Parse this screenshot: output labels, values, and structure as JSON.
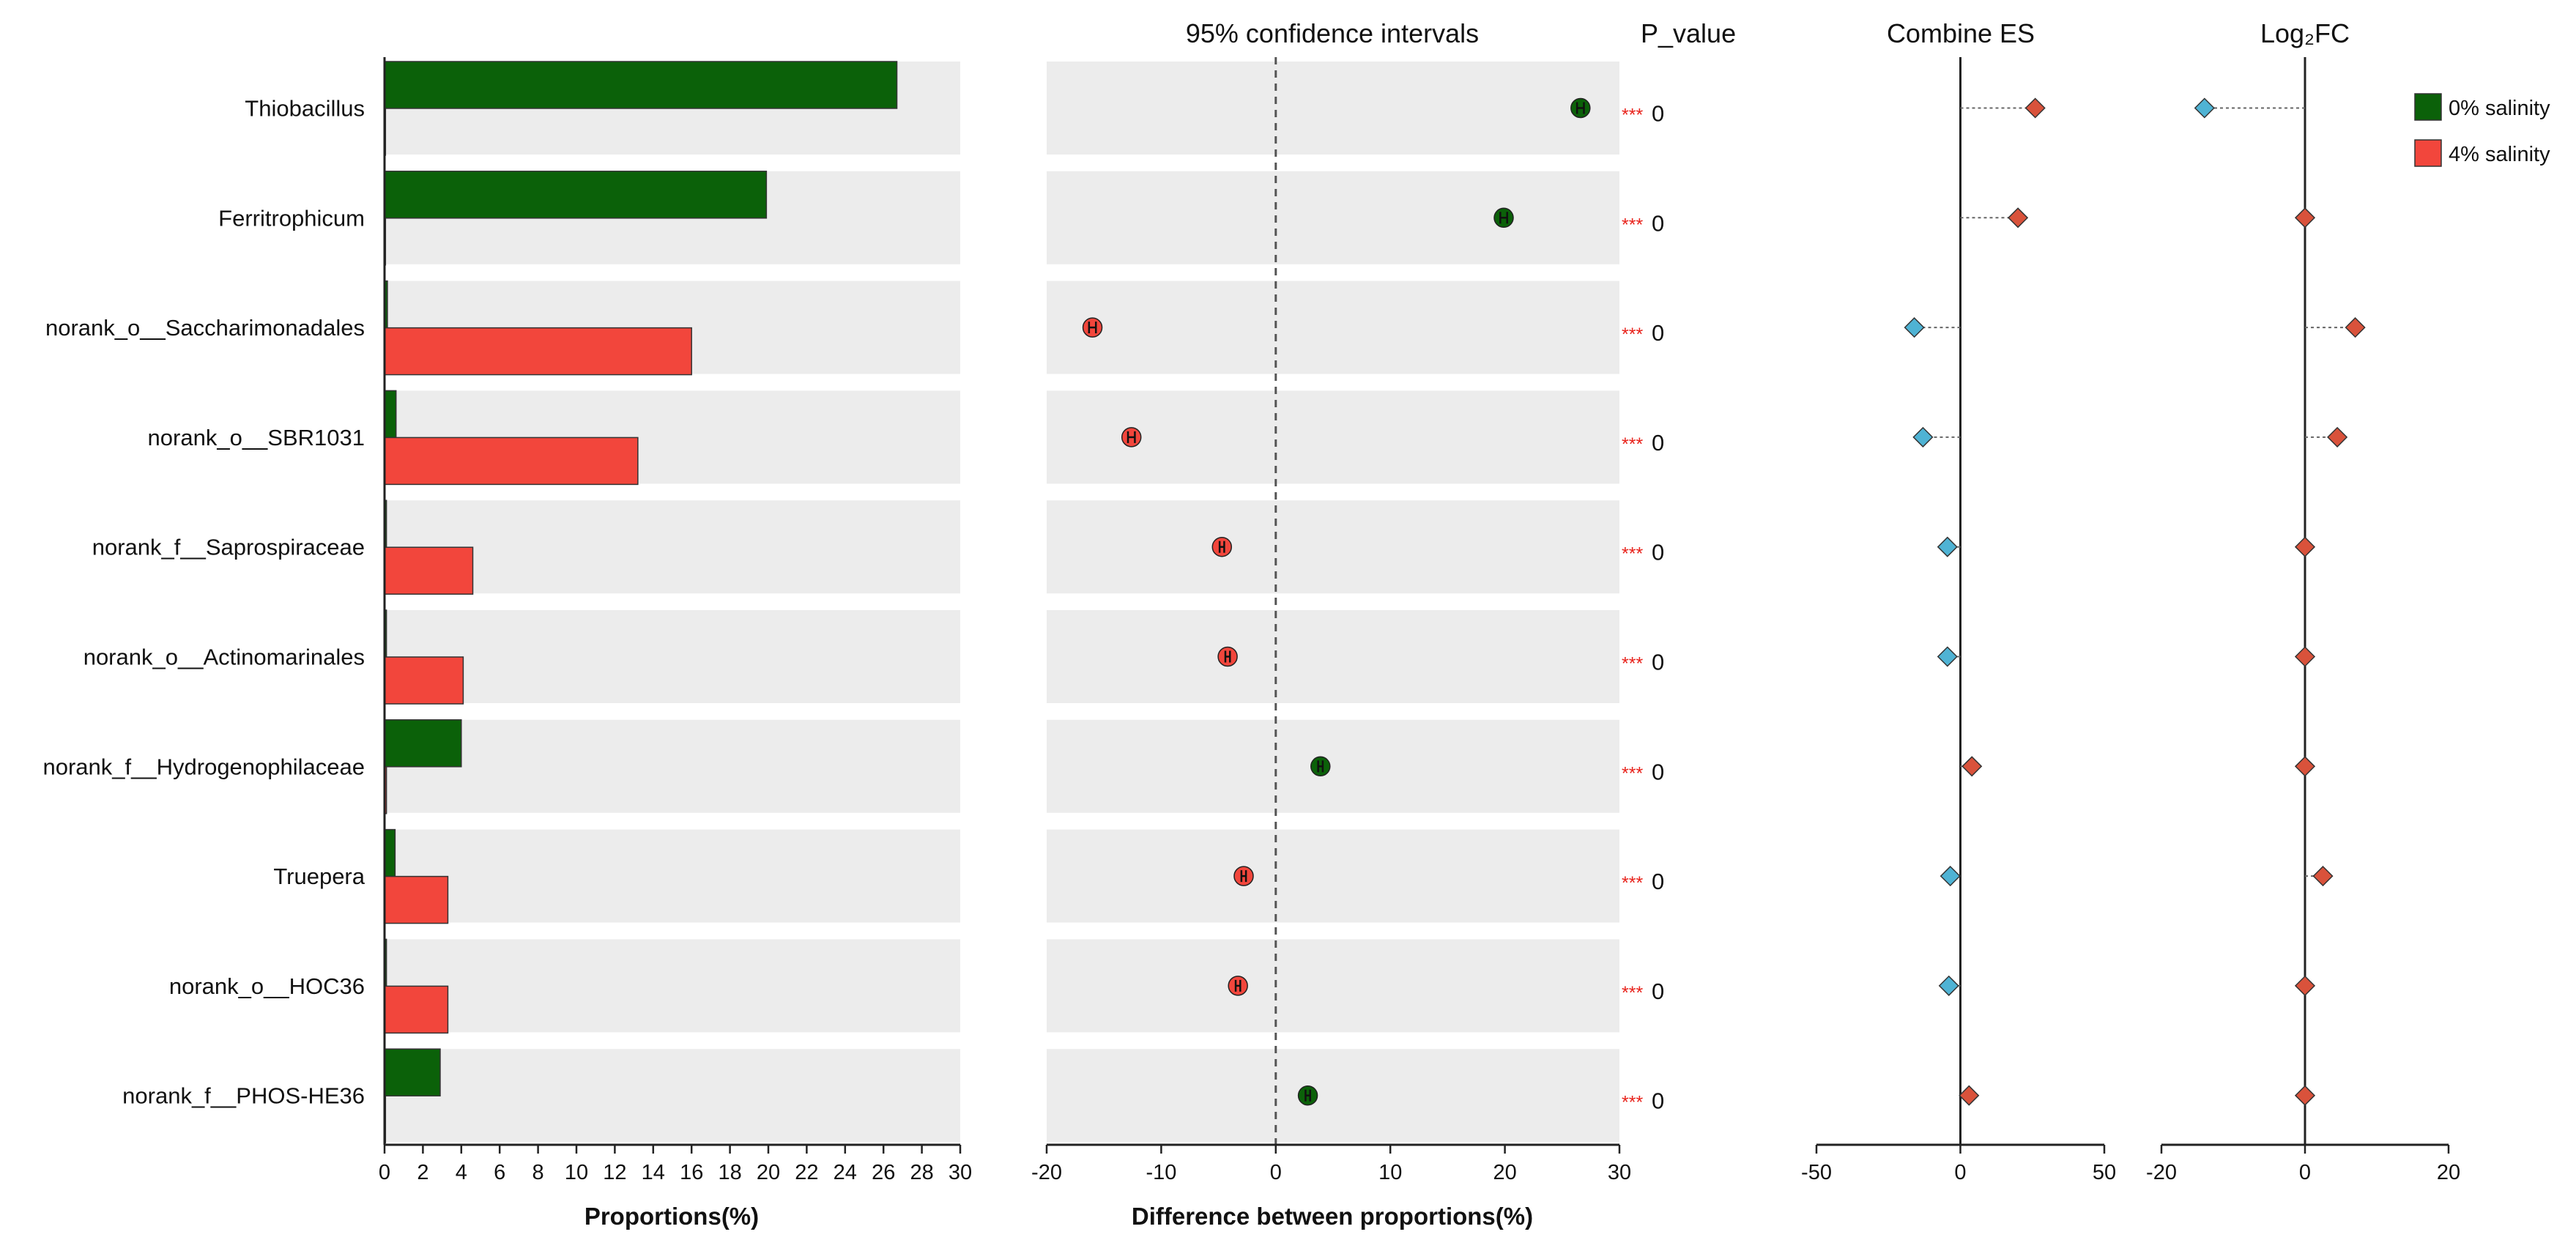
{
  "chart_data": {
    "type": "bar",
    "taxa": [
      "Thiobacillus",
      "Ferritrophicum",
      "norank_o__Saccharimonadales",
      "norank_o__SBR1031",
      "norank_f__Saprospiraceae",
      "norank_o__Actinomarinales",
      "norank_f__Hydrogenophilaceae",
      "Truepera",
      "norank_o__HOC36",
      "norank_f__PHOS-HE36"
    ],
    "legend": [
      {
        "name": "0% salinity",
        "color": "#0b6109"
      },
      {
        "name": "4% salinity",
        "color": "#f2463c"
      }
    ],
    "proportions": {
      "xlabel": "Proportions(%)",
      "xlim": [
        0,
        30
      ],
      "ticks": [
        0,
        2,
        4,
        6,
        8,
        10,
        12,
        14,
        16,
        18,
        20,
        22,
        24,
        26,
        28,
        30
      ],
      "series": [
        {
          "name": "0% salinity",
          "values": [
            26.7,
            19.9,
            0.15,
            0.6,
            0.1,
            0.1,
            4.0,
            0.55,
            0.1,
            2.9
          ]
        },
        {
          "name": "4% salinity",
          "values": [
            0.05,
            0.05,
            16.0,
            13.2,
            4.6,
            4.1,
            0.1,
            3.3,
            3.3,
            0.05
          ]
        }
      ]
    },
    "difference": {
      "title": "95% confidence intervals",
      "xlabel": "Difference between proportions(%)",
      "xlim": [
        -20,
        30
      ],
      "ticks": [
        -20,
        -10,
        0,
        10,
        20,
        30
      ],
      "values": [
        26.6,
        19.9,
        -16.0,
        -12.6,
        -4.7,
        -4.2,
        3.9,
        -2.8,
        -3.3,
        2.8
      ],
      "ci_low": [
        26.3,
        19.6,
        -16.3,
        -12.9,
        -4.9,
        -4.4,
        3.7,
        -3.0,
        -3.5,
        2.6
      ],
      "ci_high": [
        26.9,
        20.2,
        -15.7,
        -12.3,
        -4.5,
        -4.0,
        4.1,
        -2.6,
        -3.1,
        3.0
      ]
    },
    "p_value": {
      "title": "P_value",
      "values": [
        "0",
        "0",
        "0",
        "0",
        "0",
        "0",
        "0",
        "0",
        "0",
        "0"
      ],
      "stars": [
        "***",
        "***",
        "***",
        "***",
        "***",
        "***",
        "***",
        "***",
        "***",
        "***"
      ]
    },
    "combine_es": {
      "title": "Combine ES",
      "xlim": [
        -50,
        50
      ],
      "ticks": [
        -50,
        0,
        50
      ],
      "values": [
        26,
        20,
        -16,
        -13,
        -4.5,
        -4.5,
        4,
        -3.5,
        -4,
        3
      ]
    },
    "log2fc": {
      "title": "Log₂FC",
      "xlim": [
        -20,
        20
      ],
      "ticks": [
        -20,
        0,
        20
      ],
      "values": [
        -14,
        0,
        7,
        4.5,
        0,
        0,
        0,
        2.5,
        0,
        0
      ]
    },
    "colors": {
      "panel_background": "#ececec",
      "group_0": "#0b6109",
      "group_4": "#f2463c",
      "diamond_positive": "#d9523b",
      "diamond_negative": "#4fb3d4",
      "significance": "#e8221b"
    }
  }
}
